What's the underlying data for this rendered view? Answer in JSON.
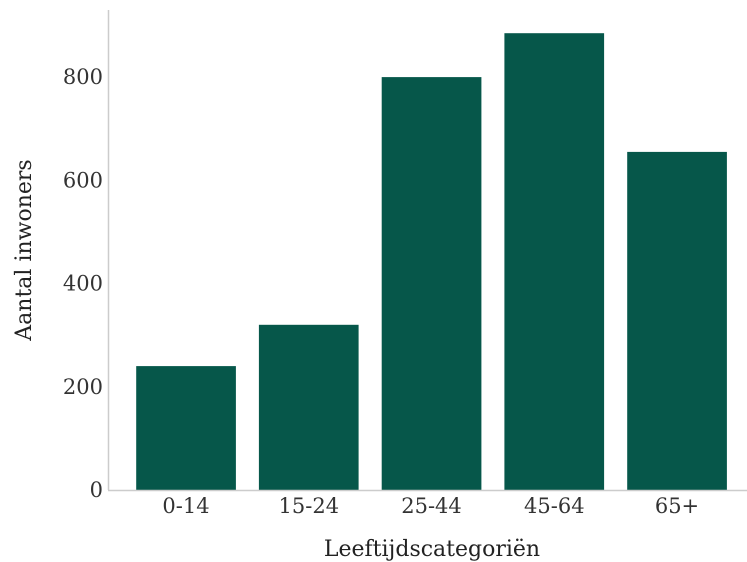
{
  "chart_data": {
    "type": "bar",
    "title": "",
    "xlabel": "Leeftijdscategoriën",
    "ylabel": "Aantal inwoners",
    "categories": [
      "0-14",
      "15-24",
      "25-44",
      "45-64",
      "65+"
    ],
    "values": [
      240,
      320,
      800,
      885,
      655
    ],
    "ylim": [
      0,
      930
    ],
    "yticks": [
      0,
      200,
      400,
      600,
      800
    ],
    "ytick_labels": [
      "0",
      "200",
      "400",
      "600",
      "800"
    ],
    "grid": false,
    "colors": {
      "bar": "#06574a",
      "axis": "#cccccc",
      "text": "#333333"
    }
  }
}
